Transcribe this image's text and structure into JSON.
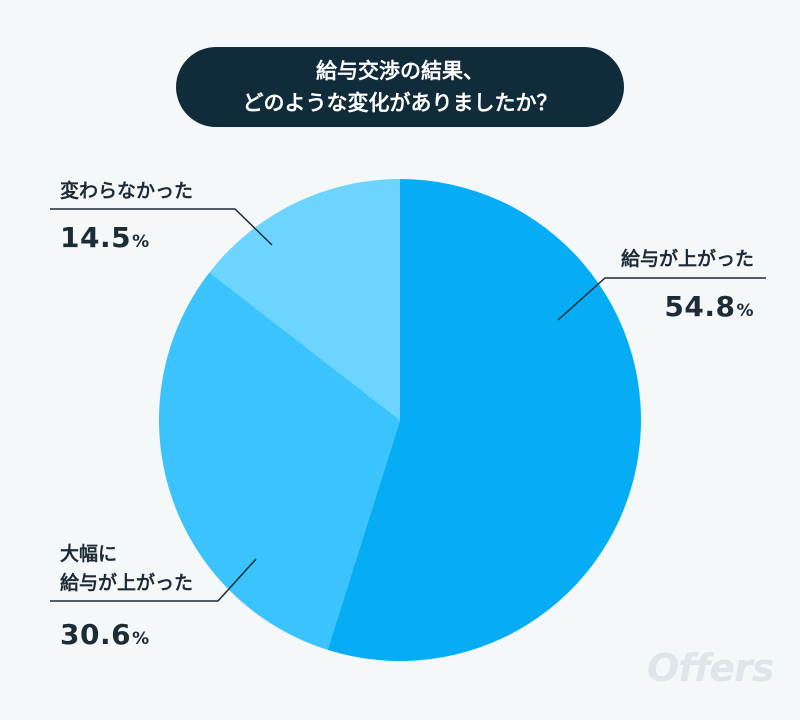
{
  "title_lines": [
    "給与交渉の結果、",
    "どのような変化がありましたか？"
  ],
  "chart_data": {
    "type": "pie",
    "start_angle": 0,
    "direction": "clockwise",
    "slices": [
      {
        "label": "給与が上がった",
        "value": 54.8,
        "value_text": "54.8",
        "color": "#06adf5"
      },
      {
        "label_lines": [
          "大幅に",
          "給与が上がった"
        ],
        "value": 30.6,
        "value_text": "30.6",
        "color": "#3ac3fd"
      },
      {
        "label": "変わらなかった",
        "value": 14.5,
        "value_text": "14.5",
        "color": "#6dd4ff"
      }
    ],
    "unit": "%"
  },
  "logo_text": "Offers"
}
